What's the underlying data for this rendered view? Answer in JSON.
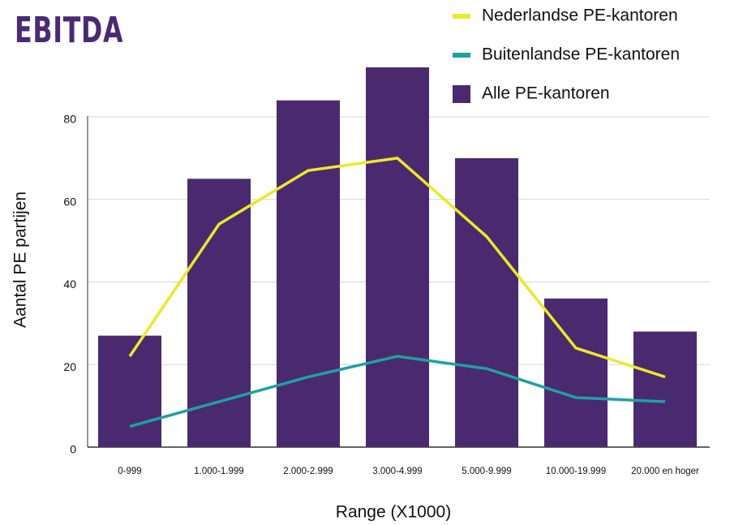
{
  "chart_data": {
    "type": "bar",
    "title": "EBITDA",
    "y_label": "Aantal PE partijen",
    "x_label": "Range (X1000)",
    "categories": [
      "0-999",
      "1.000-1.999",
      "2.000-2.999",
      "3.000-4.999",
      "5.000-9.999",
      "10.000-19.999",
      "20.000 en hoger"
    ],
    "series": [
      {
        "name": "Nederlandse PE-kantoren",
        "type": "line",
        "color": "#ece82a",
        "values": [
          22,
          54,
          67,
          70,
          51,
          24,
          17
        ]
      },
      {
        "name": "Buitenlandse PE-kantoren",
        "type": "line",
        "color": "#1fa0a4",
        "values": [
          5,
          11,
          17,
          22,
          19,
          12,
          11
        ]
      },
      {
        "name": "Alle PE-kantoren",
        "type": "bar",
        "color": "#4a2a6e",
        "values": [
          27,
          65,
          84,
          92,
          70,
          36,
          28
        ]
      }
    ],
    "ylim": [
      0,
      92
    ],
    "yticks": [
      0,
      20,
      40,
      60,
      80
    ],
    "grid": true
  }
}
